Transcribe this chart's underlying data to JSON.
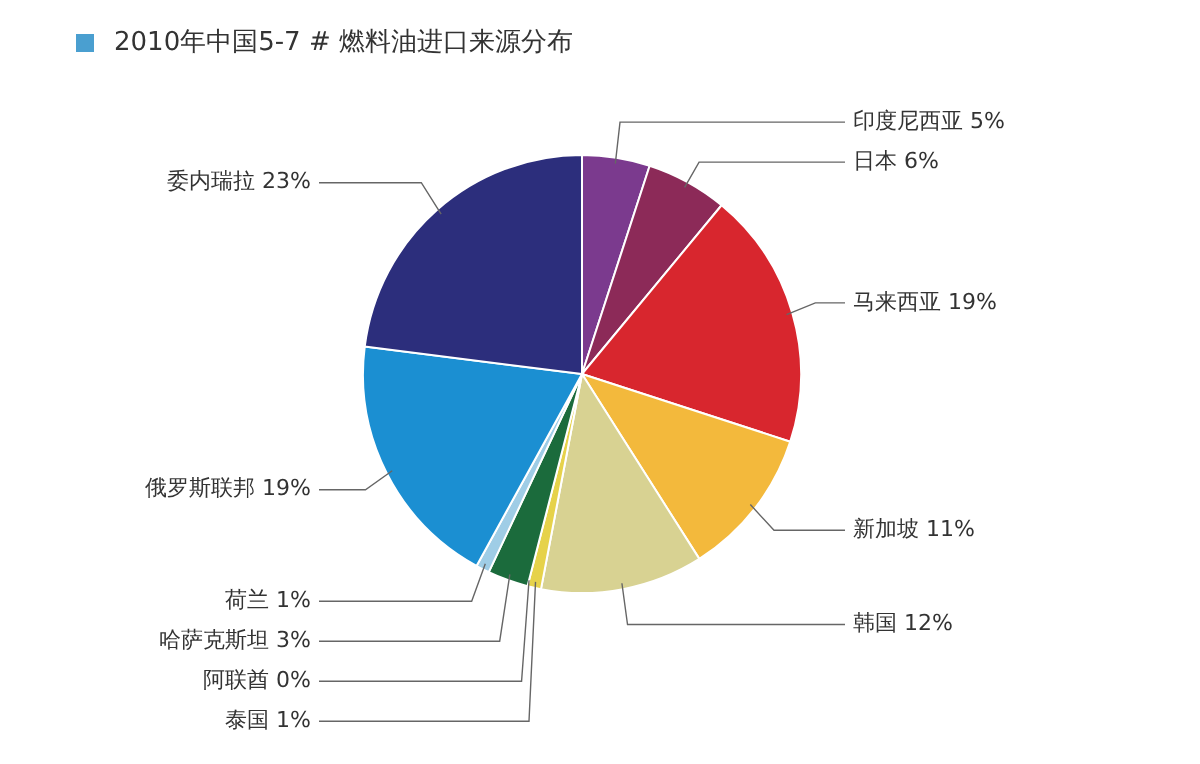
{
  "chart_data": {
    "type": "pie",
    "title": "2010年中国5-7 # 燃料油进口来源分布",
    "categories": [
      "印度尼西亚",
      "日本",
      "马来西亚",
      "新加坡",
      "韩国",
      "泰国",
      "阿联酋",
      "哈萨克斯坦",
      "荷兰",
      "俄罗斯联邦",
      "委内瑞拉"
    ],
    "values": [
      5,
      6,
      19,
      11,
      12,
      1,
      0,
      3,
      1,
      19,
      23
    ],
    "value_labels": [
      "5%",
      "6%",
      "19%",
      "11%",
      "12%",
      "1%",
      "0%",
      "3%",
      "1%",
      "19%",
      "23%"
    ],
    "colors": [
      "#7b3a8e",
      "#8c2a58",
      "#d8262e",
      "#f3b93c",
      "#d8d292",
      "#e6d24a",
      "#9acb5a",
      "#1b6b3c",
      "#9fcde6",
      "#1b8fd2",
      "#2c2e7c"
    ]
  }
}
